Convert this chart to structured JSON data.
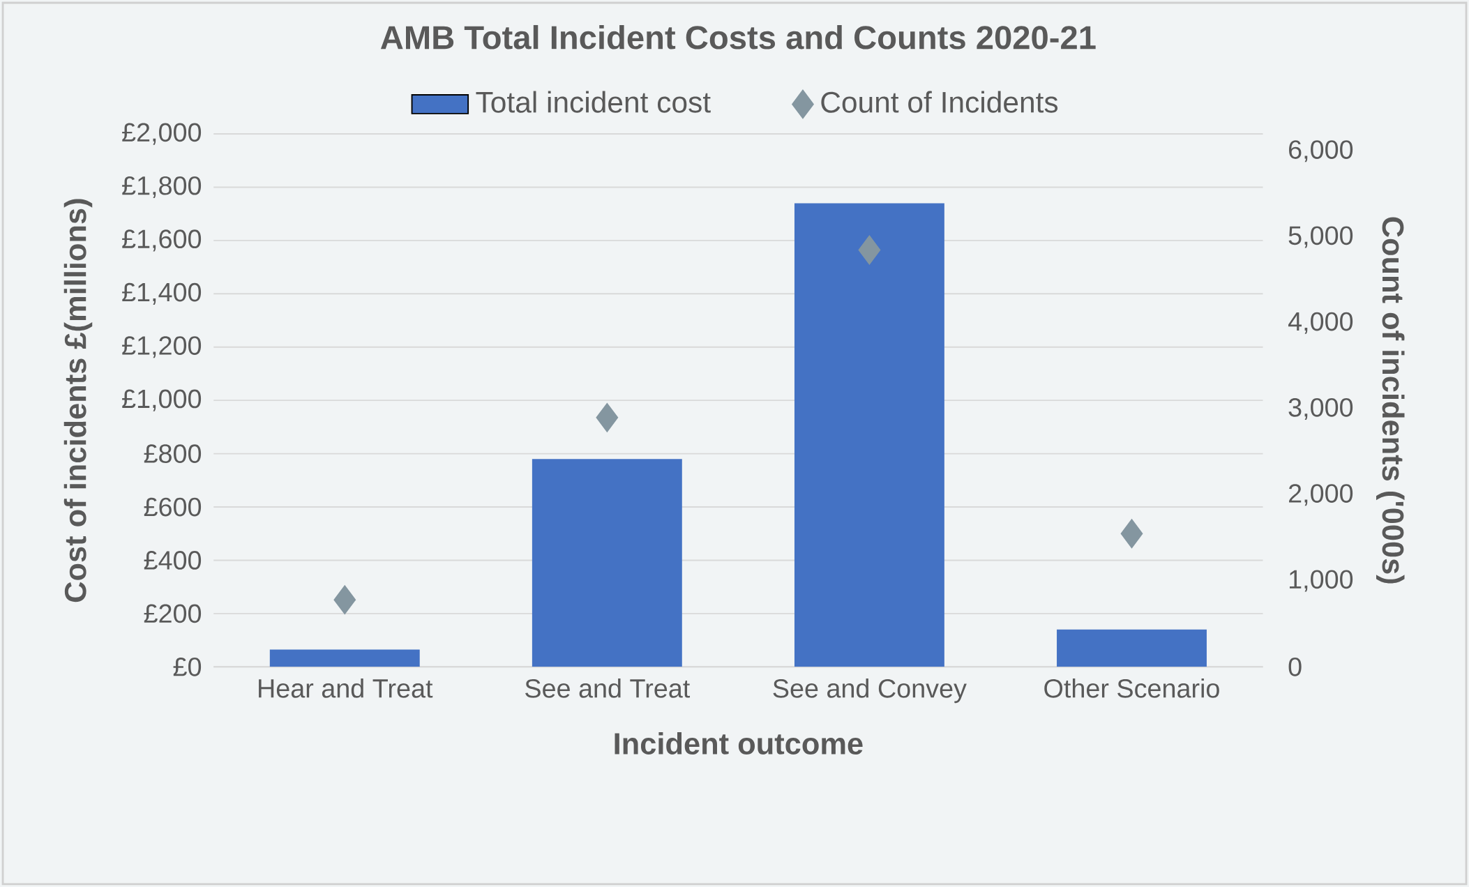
{
  "chart_data": {
    "type": "bar",
    "title": "AMB Total Incident Costs and Counts 2020-21",
    "xlabel": "Incident outcome",
    "ylabel": "Cost of incidents £(millions)",
    "y2label": "Count of incidents ('000s)",
    "categories": [
      "Hear and Treat",
      "See and Treat",
      "See and Convey",
      "Other Scenario"
    ],
    "series": [
      {
        "name": "Total incident cost",
        "color": "#4472c4",
        "values": [
          65,
          780,
          1740,
          140
        ]
      },
      {
        "name": "Count of Incidents",
        "type": "scatter",
        "axis": "y2",
        "marker": "diamond",
        "color": "#8496a0",
        "values": [
          780,
          2900,
          4850,
          1550
        ]
      }
    ],
    "ylim": [
      0,
      2000
    ],
    "yticks": [
      {
        "value": 0,
        "label": "£0"
      },
      {
        "value": 200,
        "label": "£200"
      },
      {
        "value": 400,
        "label": "£400"
      },
      {
        "value": 600,
        "label": "£600"
      },
      {
        "value": 800,
        "label": "£800"
      },
      {
        "value": 1000,
        "label": "£1,000"
      },
      {
        "value": 1200,
        "label": "£1,200"
      },
      {
        "value": 1400,
        "label": "£1,400"
      },
      {
        "value": 1600,
        "label": "£1,600"
      },
      {
        "value": 1800,
        "label": "£1,800"
      },
      {
        "value": 2000,
        "label": "£2,000"
      }
    ],
    "y2lim": [
      0,
      6200
    ],
    "y2ticks": [
      0,
      {
        "value": 1000,
        "label": "1,000"
      },
      {
        "value": 2000,
        "label": "2,000"
      },
      {
        "value": 3000,
        "label": "3,000"
      },
      {
        "value": 4000,
        "label": "4,000"
      },
      {
        "value": 5000,
        "label": "5,000"
      },
      {
        "value": 6000,
        "label": "6,000"
      }
    ],
    "grid": "y",
    "legend": "top"
  }
}
